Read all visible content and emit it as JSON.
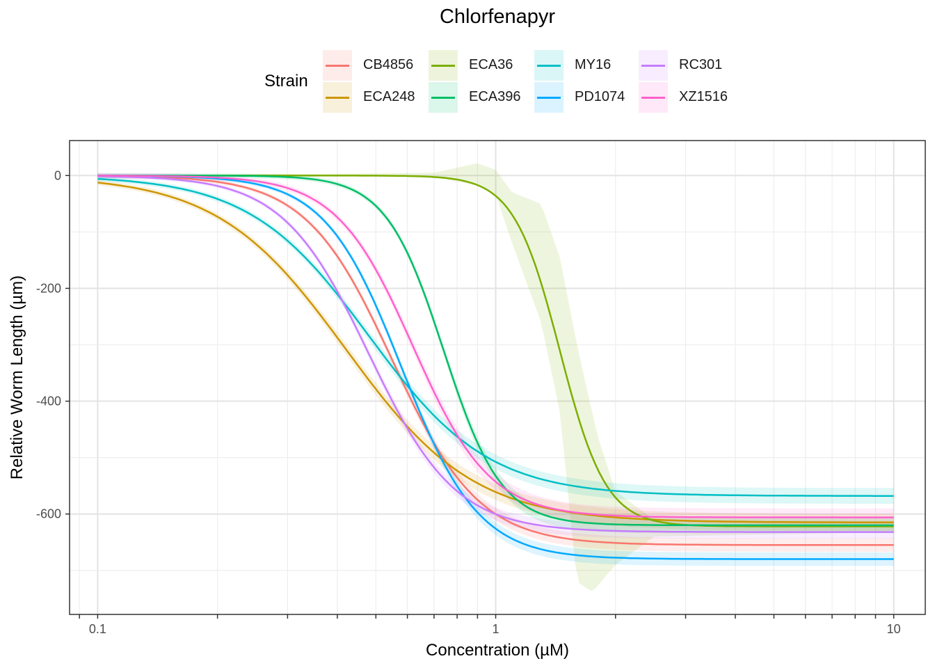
{
  "title": "Chlorfenapyr",
  "legend": {
    "title": "Strain",
    "items": [
      {
        "label": "CB4856",
        "color": "#F8766D"
      },
      {
        "label": "ECA248",
        "color": "#CD9600"
      },
      {
        "label": "ECA36",
        "color": "#7CAE00"
      },
      {
        "label": "ECA396",
        "color": "#00BE67"
      },
      {
        "label": "MY16",
        "color": "#00BFC4"
      },
      {
        "label": "PD1074",
        "color": "#00A9FF"
      },
      {
        "label": "RC301",
        "color": "#C77CFF"
      },
      {
        "label": "XZ1516",
        "color": "#FF61CC"
      }
    ]
  },
  "chart_data": {
    "type": "line",
    "title": "Chlorfenapyr",
    "xlabel": "Concentration (µM)",
    "ylabel": "Relative Worm Length (µm)",
    "x_scale": "log10",
    "xlim": [
      0.085,
      12
    ],
    "ylim": [
      -778,
      62
    ],
    "x_ticks": [
      0.1,
      1,
      10
    ],
    "x_tick_labels": [
      "0.1",
      "1",
      "10"
    ],
    "y_ticks": [
      0,
      -200,
      -400,
      -600
    ],
    "y_tick_labels": [
      "0",
      "-200",
      "-400",
      "-600"
    ],
    "grid": true,
    "legend_position": "top",
    "x_range": [
      0.1,
      10
    ],
    "series": [
      {
        "name": "CB4856",
        "color": "#F8766D",
        "model": {
          "top": 0,
          "bottom": -655,
          "ec50": 0.55,
          "hill": 4.0
        },
        "band": 12
      },
      {
        "name": "ECA248",
        "color": "#CD9600",
        "model": {
          "top": 0,
          "bottom": -615,
          "ec50": 0.42,
          "hill": 2.7
        },
        "band": 15
      },
      {
        "name": "ECA36",
        "color": "#7CAE00",
        "model": {
          "top": 0,
          "bottom": -622,
          "ec50": 1.45,
          "hill": 7.5
        },
        "band_upper": [
          [
            0.1,
            0
          ],
          [
            0.7,
            5
          ],
          [
            0.9,
            22
          ],
          [
            1.0,
            10
          ],
          [
            1.1,
            -30
          ],
          [
            1.3,
            -50
          ],
          [
            1.45,
            -145
          ],
          [
            1.6,
            -300
          ],
          [
            1.8,
            -460
          ],
          [
            2.0,
            -560
          ],
          [
            2.5,
            -610
          ],
          [
            10,
            -612
          ]
        ],
        "band_lower": [
          [
            0.1,
            0
          ],
          [
            0.7,
            -3
          ],
          [
            0.9,
            -18
          ],
          [
            1.0,
            -35
          ],
          [
            1.1,
            -120
          ],
          [
            1.3,
            -260
          ],
          [
            1.45,
            -420
          ],
          [
            1.6,
            -720
          ],
          [
            1.75,
            -738
          ],
          [
            2.0,
            -690
          ],
          [
            2.5,
            -640
          ],
          [
            10,
            -632
          ]
        ]
      },
      {
        "name": "ECA396",
        "color": "#00BE67",
        "model": {
          "top": 0,
          "bottom": -620,
          "ec50": 0.74,
          "hill": 6.0
        },
        "band": 14
      },
      {
        "name": "MY16",
        "color": "#00BFC4",
        "model": {
          "top": 0,
          "bottom": -568,
          "ec50": 0.48,
          "hill": 2.9
        },
        "band": 14
      },
      {
        "name": "PD1074",
        "color": "#00A9FF",
        "model": {
          "top": 0,
          "bottom": -680,
          "ec50": 0.58,
          "hill": 4.5
        },
        "band": 12
      },
      {
        "name": "RC301",
        "color": "#C77CFF",
        "model": {
          "top": 0,
          "bottom": -632,
          "ec50": 0.48,
          "hill": 4.0
        },
        "band": 12
      },
      {
        "name": "XZ1516",
        "color": "#FF61CC",
        "model": {
          "top": 0,
          "bottom": -606,
          "ec50": 0.62,
          "hill": 4.5
        },
        "band": 16
      }
    ]
  }
}
